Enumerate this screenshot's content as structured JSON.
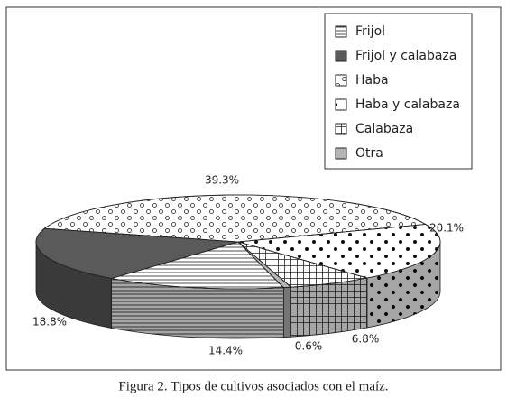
{
  "chart_data": {
    "type": "pie3d",
    "categories": [
      "Frijol",
      "Frijol y calabaza",
      "Haba",
      "Haba y calabaza",
      "Calabaza",
      "Otra"
    ],
    "values": [
      14.4,
      18.8,
      39.3,
      20.1,
      6.8,
      0.6
    ],
    "value_labels": [
      "14.4%",
      "18.8%",
      "39.3%",
      "20.1%",
      "6.8%",
      "0.6%"
    ],
    "colors": [
      "#ffffff",
      "#5a5a5a",
      "#ffffff",
      "#ffffff",
      "#ffffff",
      "#b4b4b4"
    ],
    "legend": "top-right",
    "caption": "Figura 2. Tipos de cultivos asociados con el maíz."
  }
}
